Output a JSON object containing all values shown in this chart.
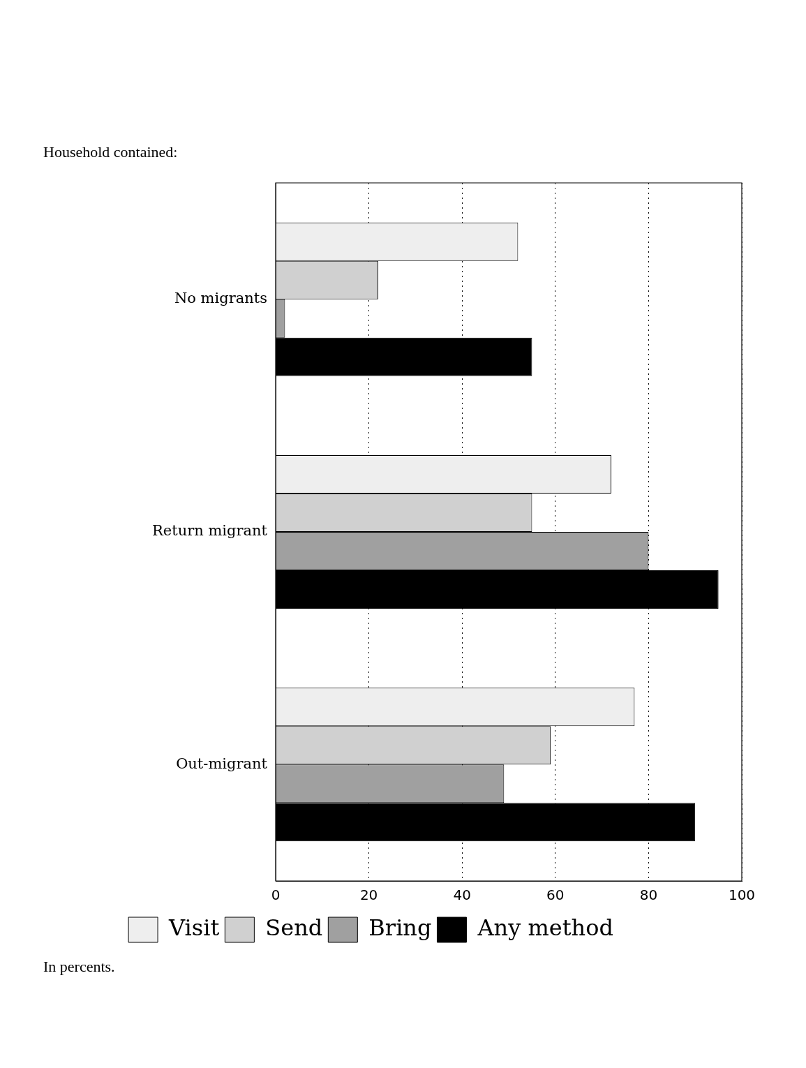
{
  "chart_data": {
    "type": "bar",
    "orientation": "horizontal",
    "title": "Household contained:",
    "categories": [
      "No migrants",
      "Return migrant",
      "Out-migrant"
    ],
    "series": [
      {
        "name": "Visit",
        "color": "#eeeeee",
        "values": [
          52,
          72,
          77
        ]
      },
      {
        "name": "Send",
        "color": "#d0d0d0",
        "values": [
          22,
          55,
          59
        ]
      },
      {
        "name": "Bring",
        "color": "#a0a0a0",
        "values": [
          2,
          80,
          49
        ]
      },
      {
        "name": "Any method",
        "color": "#000000",
        "values": [
          55,
          95,
          90
        ]
      }
    ],
    "xlim": [
      0,
      100
    ],
    "xticks": [
      0,
      20,
      40,
      60,
      80,
      100
    ],
    "grid": "x",
    "legend": "bottom",
    "annotations": [
      "In percents."
    ]
  }
}
